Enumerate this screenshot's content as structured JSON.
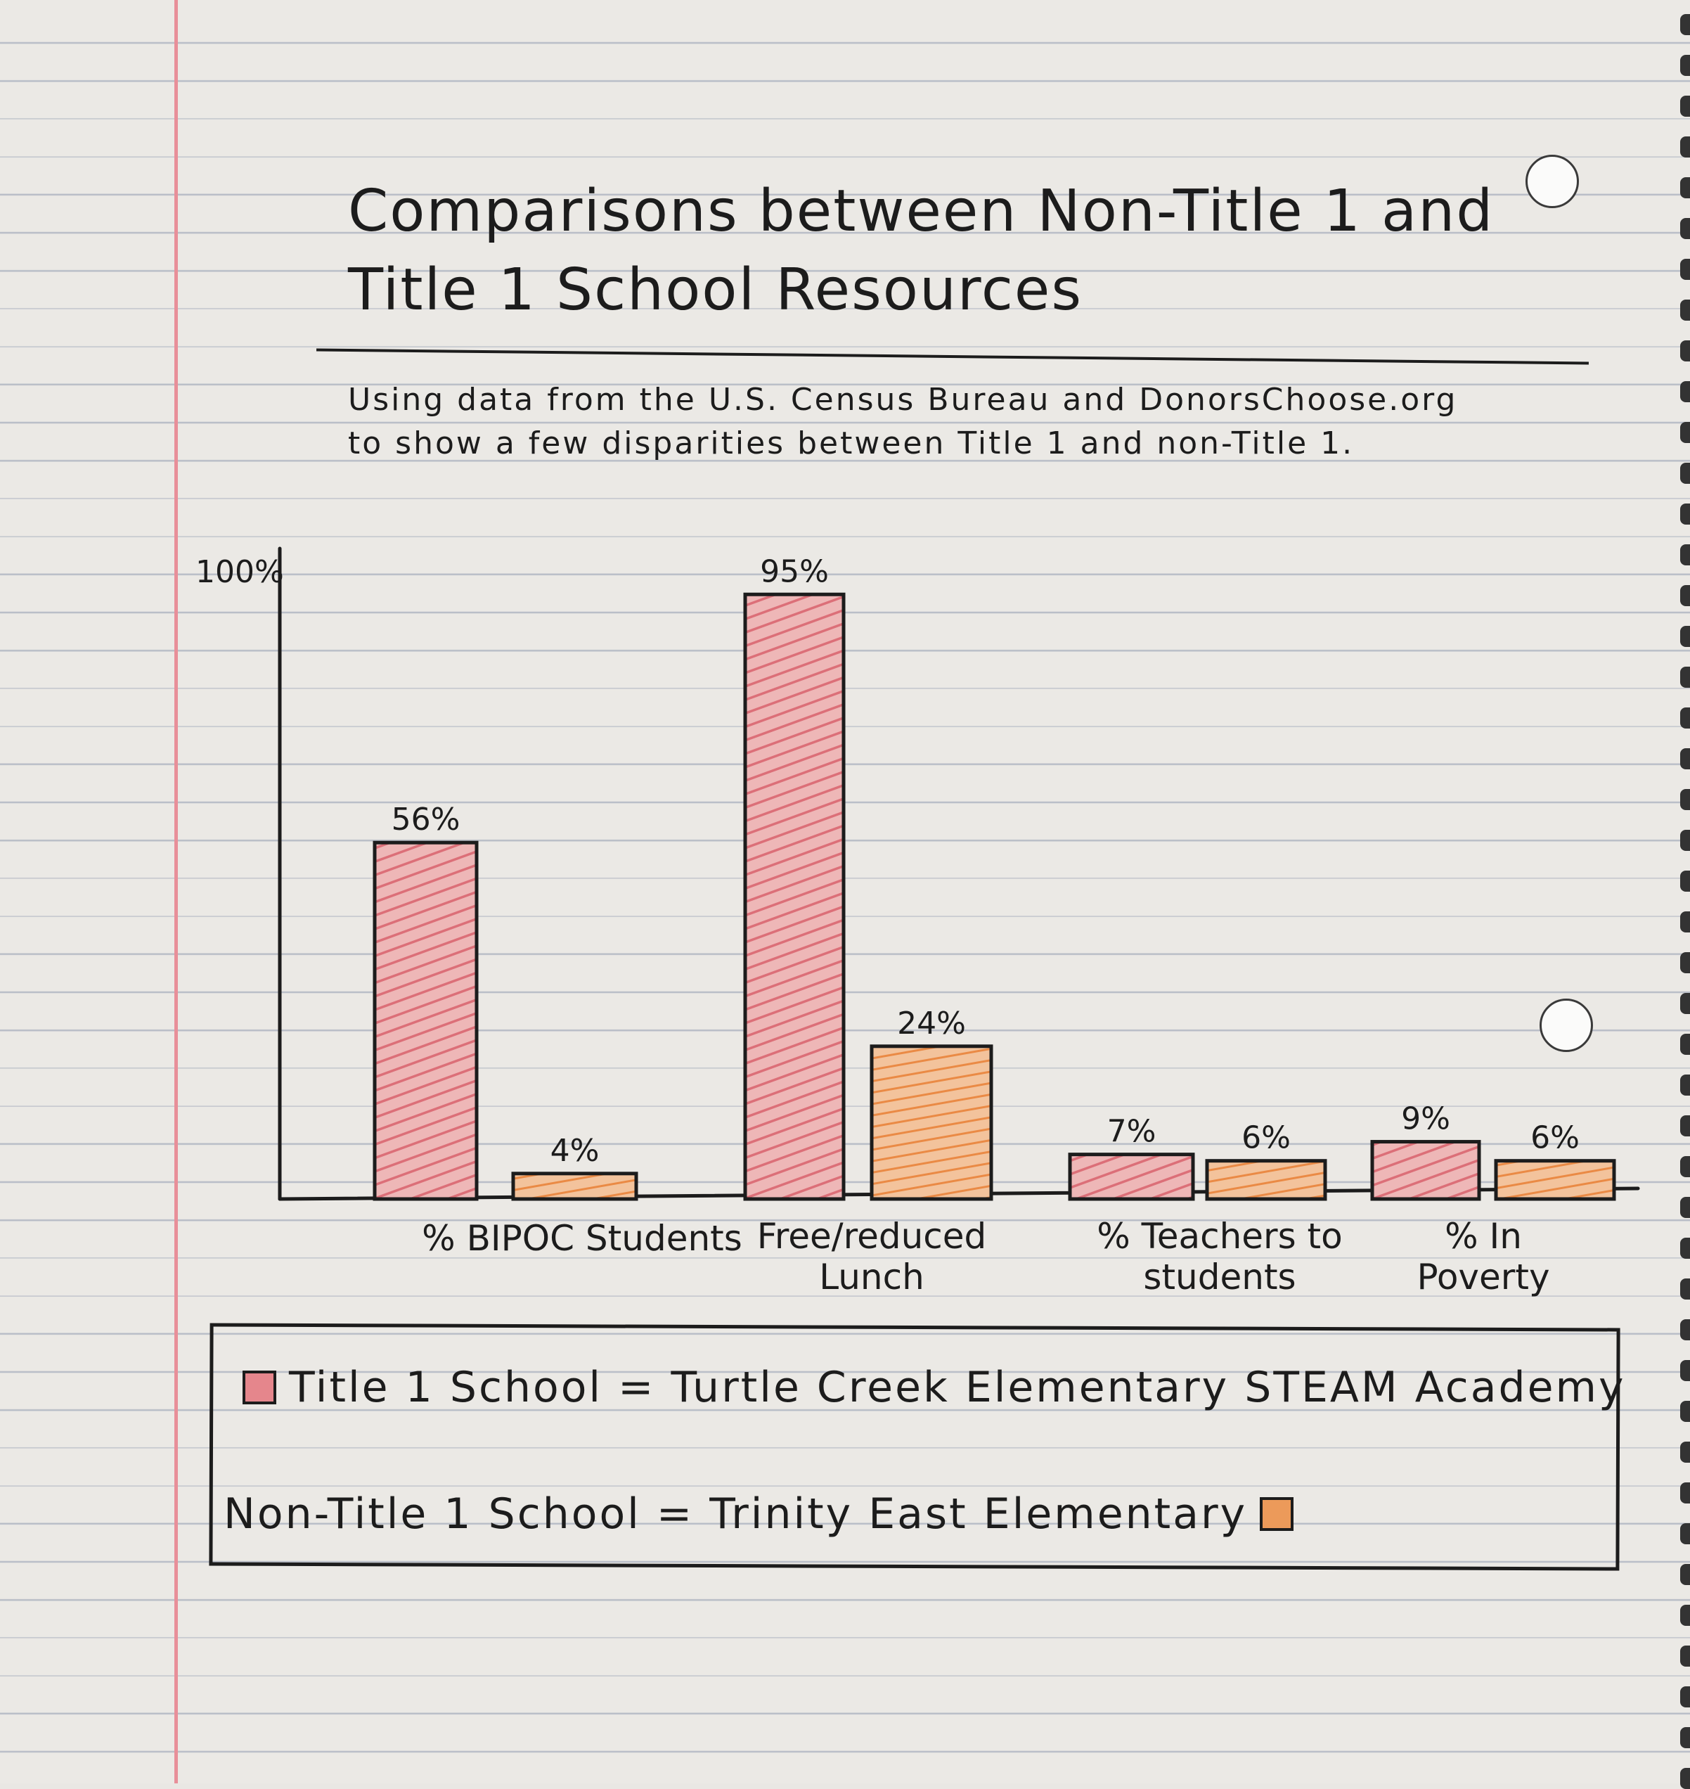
{
  "title_lines": [
    "Comparisons between Non-Title 1 and",
    "Title 1 School Resources"
  ],
  "subtitle_lines": [
    "Using data from the U.S. Census Bureau and DonorsChoose.org",
    "to show a few disparities between Title 1 and non-Title 1."
  ],
  "colors": {
    "title1": "#e5868c",
    "nontitle1": "#ec9a5a",
    "ink": "#1c1c1c",
    "margin": "#e88f99"
  },
  "chart_data": {
    "type": "bar",
    "title": "Comparisons between Non-Title 1 and Title 1 School Resources",
    "categories": [
      "% BIPOC Students",
      "Free/reduced Lunch",
      "% Teachers to students",
      "% In Poverty"
    ],
    "series": [
      {
        "name": "Title 1 School = Turtle Creek Elementary STEAM Academy",
        "values": [
          56,
          95,
          7,
          9
        ]
      },
      {
        "name": "Non-Title 1 School = Trinity East Elementary",
        "values": [
          4,
          24,
          6,
          6
        ]
      }
    ],
    "value_labels": [
      [
        "56%",
        "95%",
        "7%",
        "9%"
      ],
      [
        "4%",
        "24%",
        "6%",
        "6%"
      ]
    ],
    "y_max_label": "100%",
    "ylim": [
      0,
      100
    ],
    "grid": false,
    "legend_position": "bottom"
  },
  "legend": {
    "title1": "Title 1 School = Turtle Creek Elementary STEAM Academy",
    "nontitle1": "Non-Title 1 School = Trinity East Elementary"
  }
}
